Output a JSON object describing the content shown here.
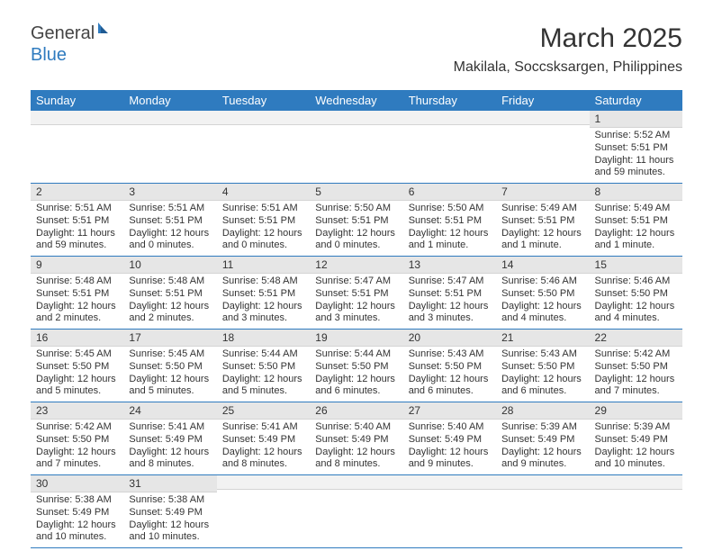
{
  "logo": {
    "text1": "General",
    "text2": "Blue"
  },
  "title": "March 2025",
  "location": "Makilala, Soccsksargen, Philippines",
  "colors": {
    "header_bg": "#2f7bbf",
    "header_fg": "#ffffff",
    "daynum_bg": "#e6e6e6",
    "row_border": "#2f7bbf",
    "page_bg": "#ffffff",
    "text": "#333333"
  },
  "day_headers": [
    "Sunday",
    "Monday",
    "Tuesday",
    "Wednesday",
    "Thursday",
    "Friday",
    "Saturday"
  ],
  "weeks": [
    [
      {
        "n": "",
        "sr": "",
        "ss": "",
        "dl": ""
      },
      {
        "n": "",
        "sr": "",
        "ss": "",
        "dl": ""
      },
      {
        "n": "",
        "sr": "",
        "ss": "",
        "dl": ""
      },
      {
        "n": "",
        "sr": "",
        "ss": "",
        "dl": ""
      },
      {
        "n": "",
        "sr": "",
        "ss": "",
        "dl": ""
      },
      {
        "n": "",
        "sr": "",
        "ss": "",
        "dl": ""
      },
      {
        "n": "1",
        "sr": "Sunrise: 5:52 AM",
        "ss": "Sunset: 5:51 PM",
        "dl": "Daylight: 11 hours and 59 minutes."
      }
    ],
    [
      {
        "n": "2",
        "sr": "Sunrise: 5:51 AM",
        "ss": "Sunset: 5:51 PM",
        "dl": "Daylight: 11 hours and 59 minutes."
      },
      {
        "n": "3",
        "sr": "Sunrise: 5:51 AM",
        "ss": "Sunset: 5:51 PM",
        "dl": "Daylight: 12 hours and 0 minutes."
      },
      {
        "n": "4",
        "sr": "Sunrise: 5:51 AM",
        "ss": "Sunset: 5:51 PM",
        "dl": "Daylight: 12 hours and 0 minutes."
      },
      {
        "n": "5",
        "sr": "Sunrise: 5:50 AM",
        "ss": "Sunset: 5:51 PM",
        "dl": "Daylight: 12 hours and 0 minutes."
      },
      {
        "n": "6",
        "sr": "Sunrise: 5:50 AM",
        "ss": "Sunset: 5:51 PM",
        "dl": "Daylight: 12 hours and 1 minute."
      },
      {
        "n": "7",
        "sr": "Sunrise: 5:49 AM",
        "ss": "Sunset: 5:51 PM",
        "dl": "Daylight: 12 hours and 1 minute."
      },
      {
        "n": "8",
        "sr": "Sunrise: 5:49 AM",
        "ss": "Sunset: 5:51 PM",
        "dl": "Daylight: 12 hours and 1 minute."
      }
    ],
    [
      {
        "n": "9",
        "sr": "Sunrise: 5:48 AM",
        "ss": "Sunset: 5:51 PM",
        "dl": "Daylight: 12 hours and 2 minutes."
      },
      {
        "n": "10",
        "sr": "Sunrise: 5:48 AM",
        "ss": "Sunset: 5:51 PM",
        "dl": "Daylight: 12 hours and 2 minutes."
      },
      {
        "n": "11",
        "sr": "Sunrise: 5:48 AM",
        "ss": "Sunset: 5:51 PM",
        "dl": "Daylight: 12 hours and 3 minutes."
      },
      {
        "n": "12",
        "sr": "Sunrise: 5:47 AM",
        "ss": "Sunset: 5:51 PM",
        "dl": "Daylight: 12 hours and 3 minutes."
      },
      {
        "n": "13",
        "sr": "Sunrise: 5:47 AM",
        "ss": "Sunset: 5:51 PM",
        "dl": "Daylight: 12 hours and 3 minutes."
      },
      {
        "n": "14",
        "sr": "Sunrise: 5:46 AM",
        "ss": "Sunset: 5:50 PM",
        "dl": "Daylight: 12 hours and 4 minutes."
      },
      {
        "n": "15",
        "sr": "Sunrise: 5:46 AM",
        "ss": "Sunset: 5:50 PM",
        "dl": "Daylight: 12 hours and 4 minutes."
      }
    ],
    [
      {
        "n": "16",
        "sr": "Sunrise: 5:45 AM",
        "ss": "Sunset: 5:50 PM",
        "dl": "Daylight: 12 hours and 5 minutes."
      },
      {
        "n": "17",
        "sr": "Sunrise: 5:45 AM",
        "ss": "Sunset: 5:50 PM",
        "dl": "Daylight: 12 hours and 5 minutes."
      },
      {
        "n": "18",
        "sr": "Sunrise: 5:44 AM",
        "ss": "Sunset: 5:50 PM",
        "dl": "Daylight: 12 hours and 5 minutes."
      },
      {
        "n": "19",
        "sr": "Sunrise: 5:44 AM",
        "ss": "Sunset: 5:50 PM",
        "dl": "Daylight: 12 hours and 6 minutes."
      },
      {
        "n": "20",
        "sr": "Sunrise: 5:43 AM",
        "ss": "Sunset: 5:50 PM",
        "dl": "Daylight: 12 hours and 6 minutes."
      },
      {
        "n": "21",
        "sr": "Sunrise: 5:43 AM",
        "ss": "Sunset: 5:50 PM",
        "dl": "Daylight: 12 hours and 6 minutes."
      },
      {
        "n": "22",
        "sr": "Sunrise: 5:42 AM",
        "ss": "Sunset: 5:50 PM",
        "dl": "Daylight: 12 hours and 7 minutes."
      }
    ],
    [
      {
        "n": "23",
        "sr": "Sunrise: 5:42 AM",
        "ss": "Sunset: 5:50 PM",
        "dl": "Daylight: 12 hours and 7 minutes."
      },
      {
        "n": "24",
        "sr": "Sunrise: 5:41 AM",
        "ss": "Sunset: 5:49 PM",
        "dl": "Daylight: 12 hours and 8 minutes."
      },
      {
        "n": "25",
        "sr": "Sunrise: 5:41 AM",
        "ss": "Sunset: 5:49 PM",
        "dl": "Daylight: 12 hours and 8 minutes."
      },
      {
        "n": "26",
        "sr": "Sunrise: 5:40 AM",
        "ss": "Sunset: 5:49 PM",
        "dl": "Daylight: 12 hours and 8 minutes."
      },
      {
        "n": "27",
        "sr": "Sunrise: 5:40 AM",
        "ss": "Sunset: 5:49 PM",
        "dl": "Daylight: 12 hours and 9 minutes."
      },
      {
        "n": "28",
        "sr": "Sunrise: 5:39 AM",
        "ss": "Sunset: 5:49 PM",
        "dl": "Daylight: 12 hours and 9 minutes."
      },
      {
        "n": "29",
        "sr": "Sunrise: 5:39 AM",
        "ss": "Sunset: 5:49 PM",
        "dl": "Daylight: 12 hours and 10 minutes."
      }
    ],
    [
      {
        "n": "30",
        "sr": "Sunrise: 5:38 AM",
        "ss": "Sunset: 5:49 PM",
        "dl": "Daylight: 12 hours and 10 minutes."
      },
      {
        "n": "31",
        "sr": "Sunrise: 5:38 AM",
        "ss": "Sunset: 5:49 PM",
        "dl": "Daylight: 12 hours and 10 minutes."
      },
      {
        "n": "",
        "sr": "",
        "ss": "",
        "dl": ""
      },
      {
        "n": "",
        "sr": "",
        "ss": "",
        "dl": ""
      },
      {
        "n": "",
        "sr": "",
        "ss": "",
        "dl": ""
      },
      {
        "n": "",
        "sr": "",
        "ss": "",
        "dl": ""
      },
      {
        "n": "",
        "sr": "",
        "ss": "",
        "dl": ""
      }
    ]
  ]
}
